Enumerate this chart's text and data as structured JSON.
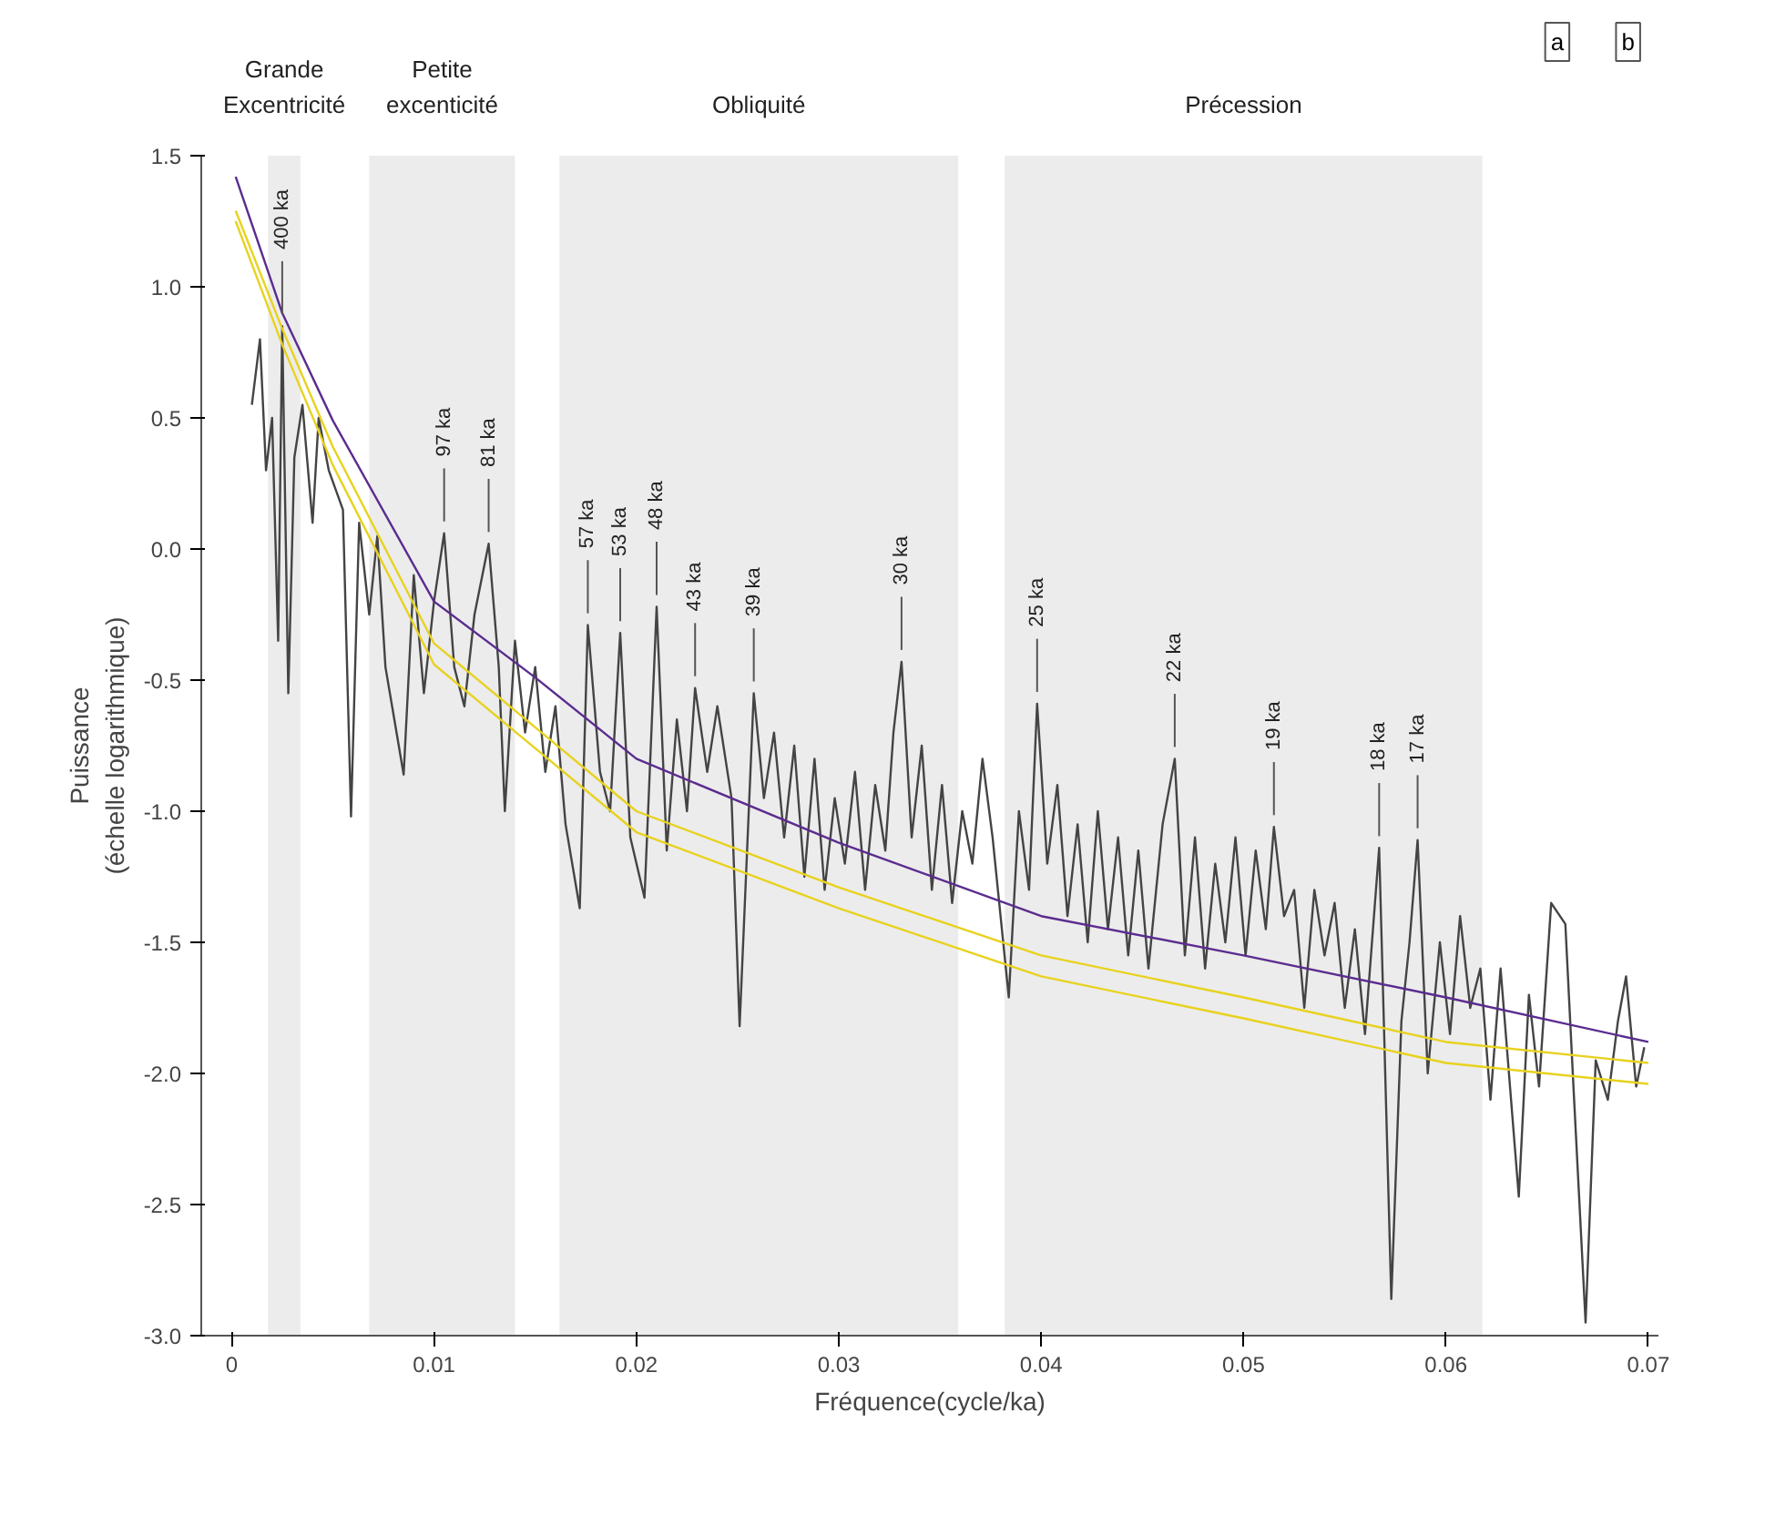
{
  "chart_data": {
    "type": "line",
    "xlabel": "Fréquence(cycle/ka)",
    "ylabel": "Puissance\n(échelle logarithmique)",
    "xlim": [
      -0.0015,
      0.0705
    ],
    "ylim": [
      -3.0,
      1.5
    ],
    "xticks": [
      0,
      0.01,
      0.02,
      0.03,
      0.04,
      0.05,
      0.06,
      0.07
    ],
    "yticks": [
      1.5,
      {
        "value": 1,
        "label": "1.0"
      },
      0.5,
      {
        "value": 0,
        "label": "0.0"
      },
      -0.5,
      {
        "value": -1,
        "label": "-1.0"
      },
      -1.5,
      {
        "value": -2,
        "label": "-2.0"
      },
      -2.5,
      {
        "value": -3,
        "label": "-3.0"
      }
    ],
    "grid": false,
    "marker": "none",
    "line_style": "solid",
    "bands": [
      {
        "axis": "x",
        "from": 0.0018,
        "to": 0.0034,
        "label": "Grande\nExcentricité",
        "color": "#ececec"
      },
      {
        "axis": "x",
        "from": 0.0068,
        "to": 0.014,
        "label": "Petite\nexcenticité",
        "color": "#ececec"
      },
      {
        "axis": "x",
        "from": 0.0162,
        "to": 0.0359,
        "label": "Obliquité",
        "color": "#ececec"
      },
      {
        "axis": "x",
        "from": 0.0382,
        "to": 0.0618,
        "label": "Précession",
        "color": "#ececec"
      }
    ],
    "series": [
      {
        "color": "#444444",
        "x": [
          0.001,
          0.0014,
          0.0017,
          0.002,
          0.0023,
          0.0025,
          0.0028,
          0.0031,
          0.0035,
          0.004,
          0.0043,
          0.0048,
          0.0055,
          0.0059,
          0.0063,
          0.0068,
          0.0072,
          0.0076,
          0.0085,
          0.009,
          0.0095,
          0.01,
          0.0105,
          0.011,
          0.0115,
          0.012,
          0.0127,
          0.0132,
          0.0135,
          0.014,
          0.0145,
          0.015,
          0.0155,
          0.016,
          0.0165,
          0.0172,
          0.0176,
          0.0182,
          0.0187,
          0.0192,
          0.0197,
          0.0204,
          0.021,
          0.0215,
          0.022,
          0.0225,
          0.0229,
          0.0235,
          0.024,
          0.0247,
          0.0251,
          0.0258,
          0.0263,
          0.0268,
          0.0273,
          0.0278,
          0.0283,
          0.0288,
          0.0293,
          0.0298,
          0.0303,
          0.0308,
          0.0313,
          0.0318,
          0.0323,
          0.0327,
          0.0331,
          0.0336,
          0.0341,
          0.0346,
          0.0351,
          0.0356,
          0.0361,
          0.0366,
          0.0371,
          0.0376,
          0.0384,
          0.0389,
          0.0394,
          0.0398,
          0.0403,
          0.0408,
          0.0413,
          0.0418,
          0.0423,
          0.0428,
          0.0433,
          0.0438,
          0.0443,
          0.0448,
          0.0453,
          0.046,
          0.0466,
          0.0471,
          0.0476,
          0.0481,
          0.0486,
          0.0491,
          0.0496,
          0.0501,
          0.0506,
          0.0511,
          0.0515,
          0.052,
          0.0525,
          0.053,
          0.0535,
          0.054,
          0.0545,
          0.055,
          0.0555,
          0.056,
          0.0567,
          0.0573,
          0.0578,
          0.0582,
          0.0586,
          0.0591,
          0.0597,
          0.0602,
          0.0607,
          0.0612,
          0.0617,
          0.0622,
          0.0627,
          0.0636,
          0.0641,
          0.0646,
          0.0652,
          0.0659,
          0.0663,
          0.0669,
          0.0674,
          0.068,
          0.0685,
          0.0689,
          0.0694,
          0.0698
        ],
        "values": [
          0.55,
          0.8,
          0.3,
          0.5,
          -0.35,
          0.85,
          -0.55,
          0.35,
          0.55,
          0.1,
          0.5,
          0.3,
          0.15,
          -1.02,
          0.1,
          -0.25,
          0.05,
          -0.45,
          -0.86,
          -0.1,
          -0.55,
          -0.2,
          0.06,
          -0.45,
          -0.6,
          -0.25,
          0.02,
          -0.45,
          -1.0,
          -0.35,
          -0.7,
          -0.45,
          -0.85,
          -0.6,
          -1.05,
          -1.37,
          -0.29,
          -0.85,
          -1.0,
          -0.32,
          -1.1,
          -1.33,
          -0.22,
          -1.15,
          -0.65,
          -1.0,
          -0.53,
          -0.85,
          -0.6,
          -0.95,
          -1.82,
          -0.55,
          -0.95,
          -0.7,
          -1.1,
          -0.75,
          -1.25,
          -0.8,
          -1.3,
          -0.95,
          -1.2,
          -0.85,
          -1.3,
          -0.9,
          -1.15,
          -0.7,
          -0.43,
          -1.1,
          -0.75,
          -1.3,
          -0.9,
          -1.35,
          -1.0,
          -1.2,
          -0.8,
          -1.1,
          -1.71,
          -1.0,
          -1.3,
          -0.59,
          -1.2,
          -0.9,
          -1.4,
          -1.05,
          -1.5,
          -1.0,
          -1.45,
          -1.1,
          -1.55,
          -1.15,
          -1.6,
          -1.05,
          -0.8,
          -1.55,
          -1.1,
          -1.6,
          -1.2,
          -1.5,
          -1.1,
          -1.55,
          -1.15,
          -1.45,
          -1.06,
          -1.4,
          -1.3,
          -1.75,
          -1.3,
          -1.55,
          -1.35,
          -1.75,
          -1.45,
          -1.85,
          -1.14,
          -2.86,
          -1.8,
          -1.5,
          -1.11,
          -2.0,
          -1.5,
          -1.85,
          -1.4,
          -1.75,
          -1.6,
          -2.1,
          -1.6,
          -2.47,
          -1.7,
          -2.05,
          -1.35,
          -1.43,
          -2.05,
          -2.95,
          -1.95,
          -2.1,
          -1.8,
          -1.63,
          -2.05,
          -1.9
        ]
      },
      {
        "color": "#e8d21e",
        "x": [
          0.0002,
          0.0025,
          0.005,
          0.01,
          0.015,
          0.02,
          0.03,
          0.04,
          0.05,
          0.06,
          0.07
        ],
        "values": [
          1.25,
          0.78,
          0.32,
          -0.44,
          -0.76,
          -1.08,
          -1.37,
          -1.63,
          -1.79,
          -1.96,
          -2.04
        ]
      },
      {
        "color": "#e8d21e",
        "x": [
          0.0002,
          0.0025,
          0.005,
          0.01,
          0.015,
          0.02,
          0.03,
          0.04,
          0.05,
          0.06,
          0.07
        ],
        "values": [
          1.29,
          0.84,
          0.39,
          -0.36,
          -0.68,
          -1.0,
          -1.29,
          -1.55,
          -1.71,
          -1.88,
          -1.96
        ]
      },
      {
        "color": "#5b2c8f",
        "x": [
          0.0002,
          0.0025,
          0.005,
          0.01,
          0.015,
          0.02,
          0.03,
          0.04,
          0.05,
          0.06,
          0.07
        ],
        "values": [
          1.42,
          0.9,
          0.49,
          -0.2,
          -0.49,
          -0.8,
          -1.12,
          -1.4,
          -1.55,
          -1.71,
          -1.88
        ]
      }
    ],
    "annotations": [
      {
        "text": "400 ka",
        "x": 0.0025,
        "y": 0.85
      },
      {
        "text": "97 ka",
        "x": 0.0105,
        "y": 0.06
      },
      {
        "text": "81 ka",
        "x": 0.0127,
        "y": 0.02
      },
      {
        "text": "57 ka",
        "x": 0.0176,
        "y": -0.29
      },
      {
        "text": "53 ka",
        "x": 0.0192,
        "y": -0.32
      },
      {
        "text": "48 ka",
        "x": 0.021,
        "y": -0.22
      },
      {
        "text": "43 ka",
        "x": 0.0229,
        "y": -0.53
      },
      {
        "text": "39 ka",
        "x": 0.0258,
        "y": -0.55
      },
      {
        "text": "30 ka",
        "x": 0.0331,
        "y": -0.43
      },
      {
        "text": "25 ka",
        "x": 0.0398,
        "y": -0.59
      },
      {
        "text": "22 ka",
        "x": 0.0466,
        "y": -0.8
      },
      {
        "text": "19 ka",
        "x": 0.0515,
        "y": -1.06
      },
      {
        "text": "18 ka",
        "x": 0.0567,
        "y": -1.14
      },
      {
        "text": "17 ka",
        "x": 0.0586,
        "y": -1.11
      },
      "a",
      "b"
    ]
  }
}
